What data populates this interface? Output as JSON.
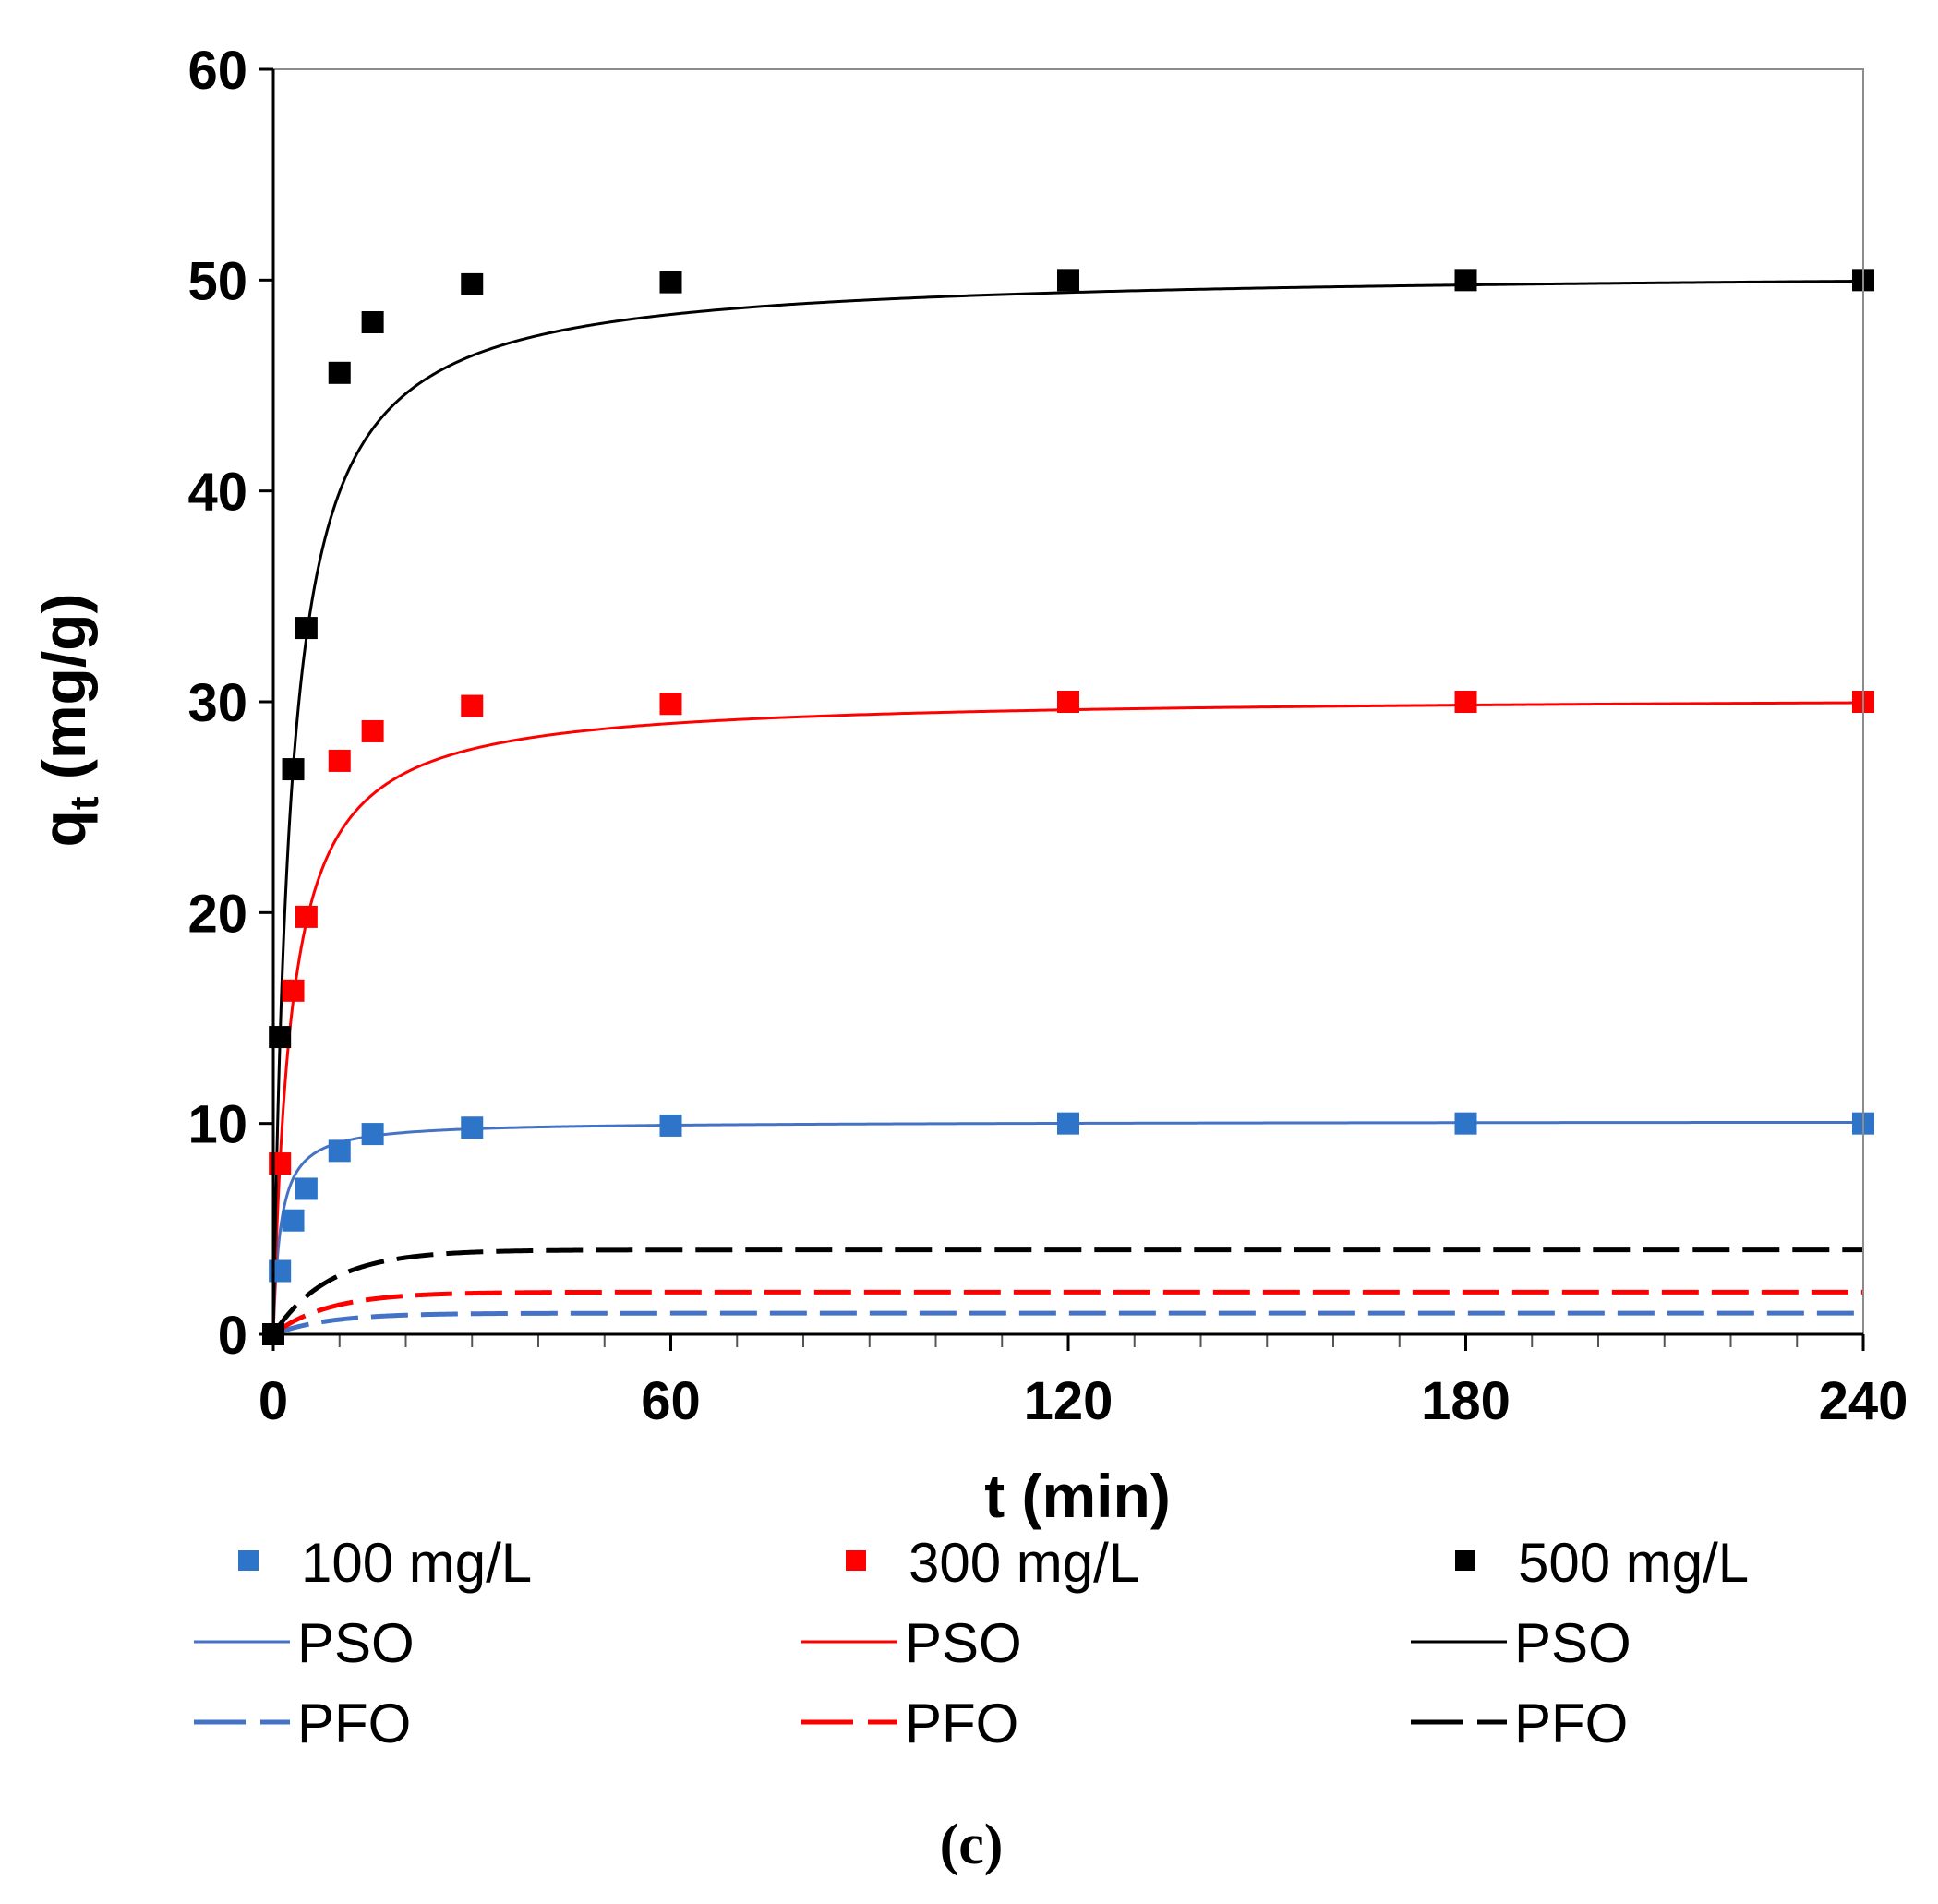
{
  "chart_data": {
    "type": "scatter",
    "panel_label": "(c)",
    "xlabel": "t (min)",
    "ylabel_main": "q",
    "ylabel_sub": "t",
    "ylabel_rest": " (mg/g)",
    "xlim": [
      0,
      240
    ],
    "ylim": [
      0,
      60
    ],
    "xticks": [
      0,
      60,
      120,
      180,
      240
    ],
    "yticks": [
      0,
      10,
      20,
      30,
      40,
      50,
      60
    ],
    "x_minor_step": 10,
    "grid": false,
    "legend_position": "bottom",
    "series": [
      {
        "name": "100 mg/L",
        "kind": "points",
        "color": "#2E75C9",
        "x": [
          0,
          1,
          3,
          5,
          10,
          15,
          30,
          60,
          120,
          180,
          240
        ],
        "y": [
          0,
          3.0,
          5.4,
          6.9,
          8.7,
          9.5,
          9.8,
          9.9,
          10.0,
          10.0,
          10.0
        ]
      },
      {
        "name": "300 mg/L",
        "kind": "points",
        "color": "#FF0000",
        "x": [
          0,
          1,
          3,
          5,
          10,
          15,
          30,
          60,
          120,
          180,
          240
        ],
        "y": [
          0,
          8.1,
          16.3,
          19.8,
          27.2,
          28.6,
          29.8,
          29.9,
          30.0,
          30.0,
          30.0
        ]
      },
      {
        "name": "500 mg/L",
        "kind": "points",
        "color": "#000000",
        "x": [
          0,
          1,
          3,
          5,
          10,
          15,
          30,
          60,
          120,
          180,
          240
        ],
        "y": [
          0,
          14.1,
          26.8,
          33.5,
          45.6,
          48.0,
          49.8,
          49.9,
          50.0,
          50.0,
          50.0
        ]
      },
      {
        "name": "PSO",
        "concentration": "100 mg/L",
        "kind": "pso",
        "style": "solid",
        "color": "#4472C4",
        "qe": 10.1,
        "k": 0.09
      },
      {
        "name": "PSO",
        "concentration": "300 mg/L",
        "kind": "pso",
        "style": "solid",
        "color": "#FF0000",
        "qe": 30.3,
        "k": 0.012
      },
      {
        "name": "PSO",
        "concentration": "500 mg/L",
        "kind": "pso",
        "style": "solid",
        "color": "#000000",
        "qe": 50.5,
        "k": 0.0075
      },
      {
        "name": "PFO",
        "concentration": "100 mg/L",
        "kind": "pfo",
        "style": "dashed",
        "color": "#4472C4",
        "qe": 1.0,
        "k": 0.12
      },
      {
        "name": "PFO",
        "concentration": "300 mg/L",
        "kind": "pfo",
        "style": "dashed",
        "color": "#FF0000",
        "qe": 2.0,
        "k": 0.12
      },
      {
        "name": "PFO",
        "concentration": "500 mg/L",
        "kind": "pfo",
        "style": "dashed",
        "color": "#000000",
        "qe": 4.0,
        "k": 0.12
      }
    ]
  }
}
